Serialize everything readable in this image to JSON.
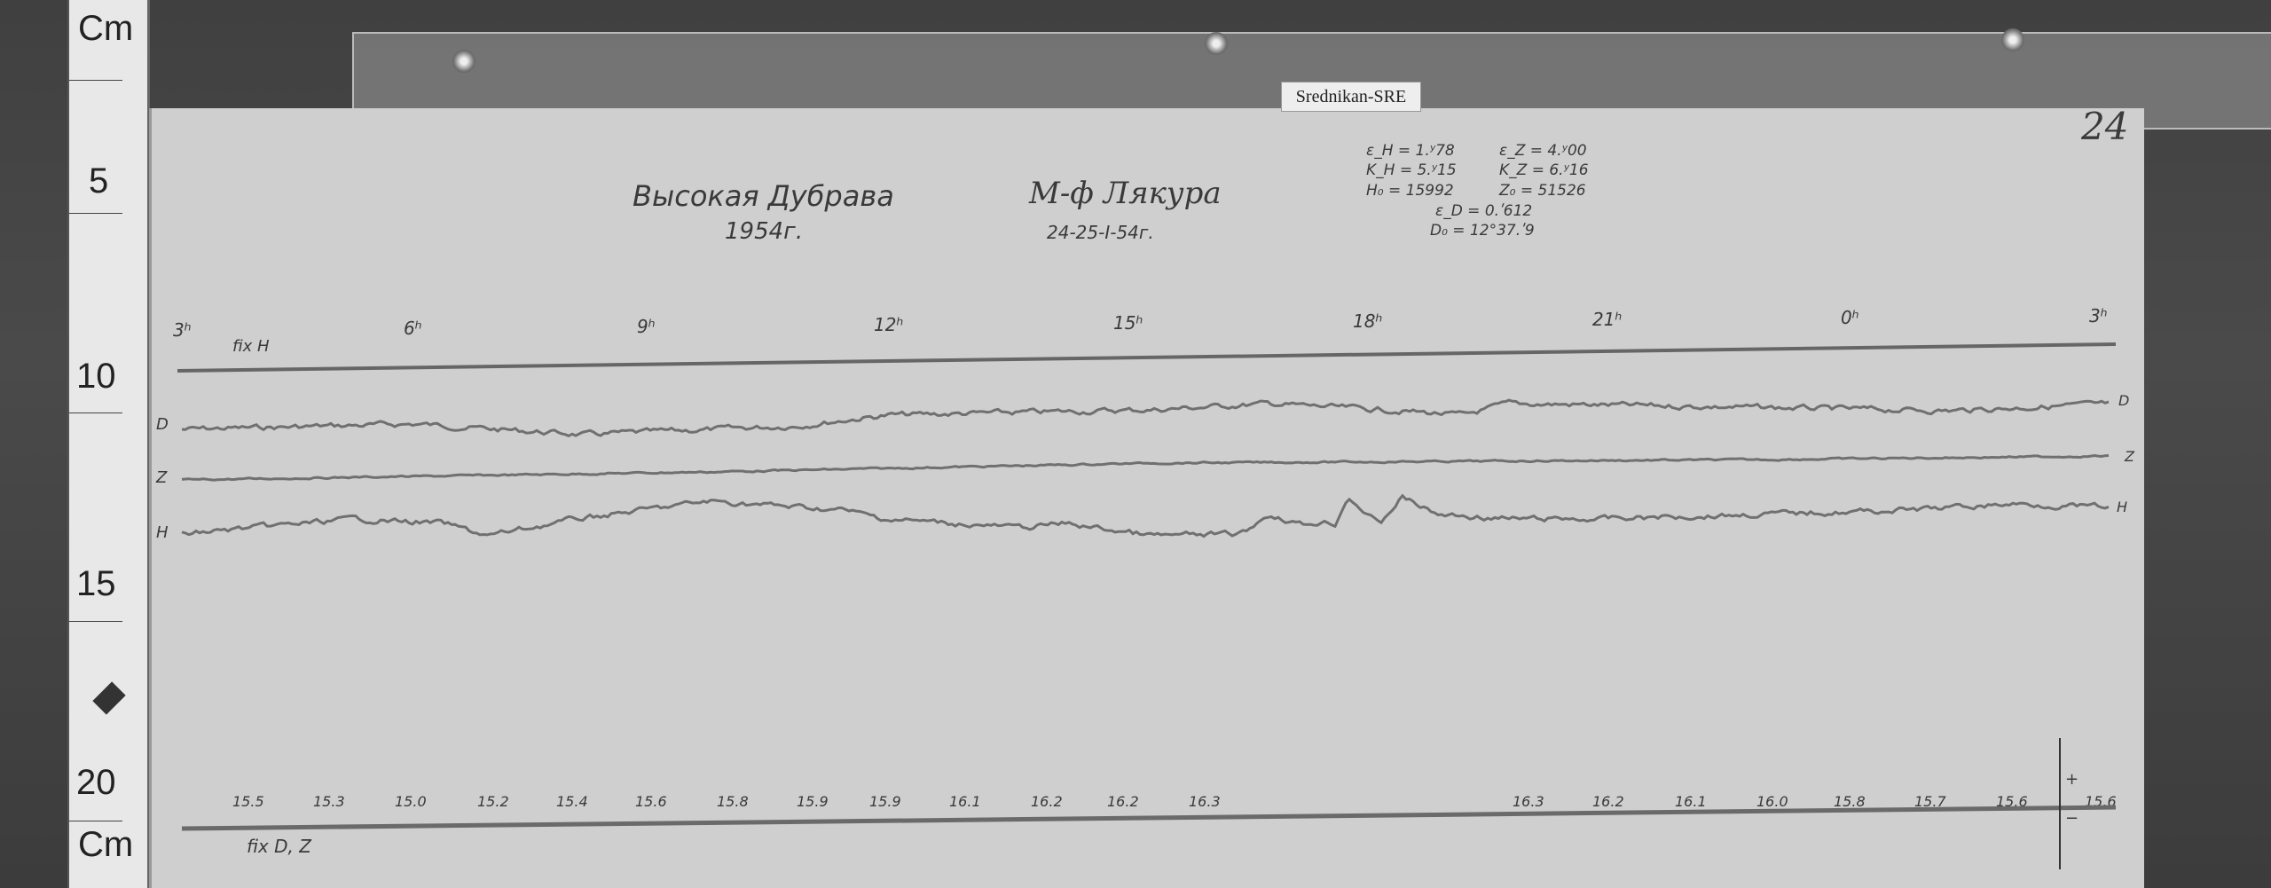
{
  "ruler": {
    "unit_top": "Cm",
    "marks": [
      "5",
      "10",
      "15",
      "20"
    ],
    "unit_bottom": "Cm"
  },
  "tag": "Srednikan-SRE",
  "sheet_number": "24",
  "station": {
    "name": "Высокая Дубрава",
    "year": "1954г."
  },
  "magnetometer": {
    "label": "М-ф Лякура",
    "dates": "24-25-I-54г."
  },
  "constants": {
    "eps_h": "ε_H = 1.ʸ78",
    "eps_z": "ε_Z = 4.ʸ00",
    "k_h": "K_H = 5.ʸ15",
    "k_z": "K_Z = 6.ʸ16",
    "h0": "H₀ = 15992",
    "z0": "Z₀ = 51526",
    "eps_d": "ε_D = 0.ʹ612",
    "d0": "D₀ = 12°37.ʹ9"
  },
  "hours": [
    "3ʰ",
    "6ʰ",
    "9ʰ",
    "12ʰ",
    "15ʰ",
    "18ʰ",
    "21ʰ",
    "0ʰ",
    "3ʰ"
  ],
  "fix_h": "fix H",
  "trace_labels": {
    "d": "D",
    "z": "Z",
    "h": "H"
  },
  "temperatures_left": [
    "15.5",
    "15.3",
    "15.0",
    "15.2",
    "15.4",
    "15.6",
    "15.8",
    "15.9",
    "15.9",
    "16.1",
    "16.2",
    "16.2",
    "16.3"
  ],
  "temperatures_right": [
    "16.3",
    "16.2",
    "16.1",
    "16.0",
    "15.8",
    "15.7",
    "15.6",
    "15.6"
  ],
  "fix_dz": "fix D, Z",
  "scale_plus": "+",
  "scale_minus": "−"
}
